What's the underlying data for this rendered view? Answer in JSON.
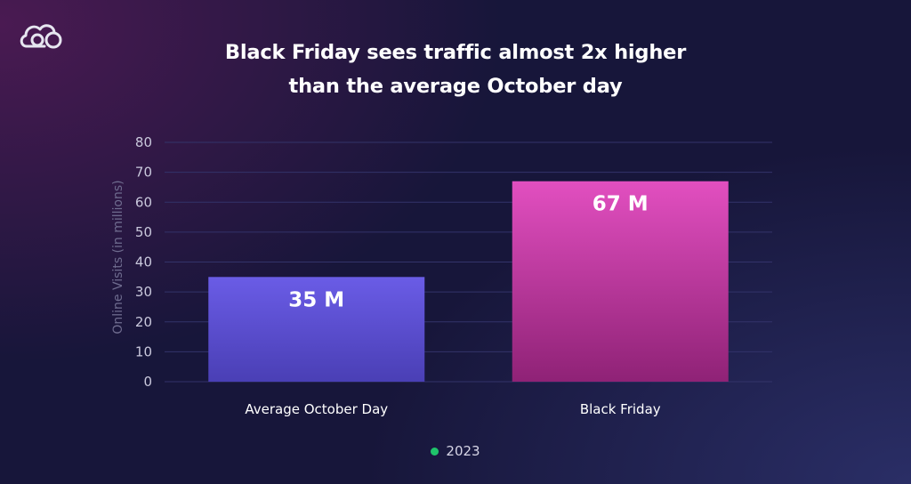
{
  "brand": {
    "logo_icon": "cloud-logo-icon"
  },
  "title_lines": [
    "Black Friday sees traffic almost 2x higher",
    "than the average October day"
  ],
  "legend": {
    "label": "2023",
    "color": "#1fc46b"
  },
  "chart_data": {
    "type": "bar",
    "title": "Black Friday sees traffic almost 2x higher than the average October day",
    "categories": [
      "Average October Day",
      "Black Friday"
    ],
    "series": [
      {
        "name": "2023",
        "values": [
          35,
          67
        ]
      }
    ],
    "data_labels": [
      "35 M",
      "67 M"
    ],
    "ylabel": "Online Visits (in millions)",
    "xlabel": "",
    "ylim": [
      0,
      80
    ],
    "yticks": [
      0,
      10,
      20,
      30,
      40,
      50,
      60,
      70,
      80
    ],
    "grid": true,
    "legend_position": "bottom-center",
    "bar_colors": [
      {
        "top": "#6a5ce6",
        "bottom": "#4a3fb5"
      },
      {
        "top": "#e24fc0",
        "bottom": "#8f2276"
      }
    ]
  }
}
